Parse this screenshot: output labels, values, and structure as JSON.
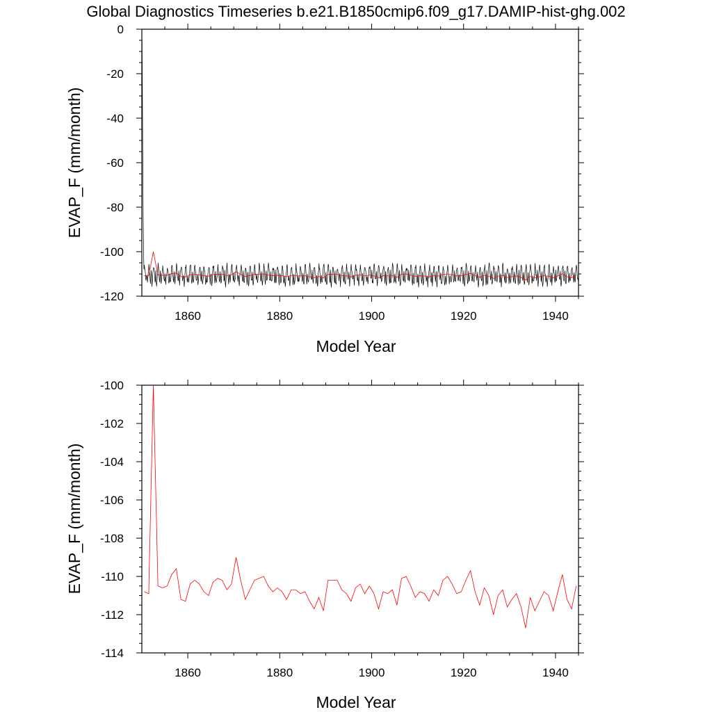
{
  "title": "Global Diagnostics Timeseries b.e21.B1850cmip6.f09_g17.DAMIP-hist-ghg.002",
  "chart_data": [
    {
      "type": "line",
      "xlabel": "Model Year",
      "ylabel": "EVAP_F (mm/month)",
      "xlim": [
        1850,
        1945
      ],
      "ylim": [
        -120,
        0
      ],
      "xticks": [
        1860,
        1880,
        1900,
        1920,
        1940
      ],
      "yticks": [
        0,
        -20,
        -40,
        -60,
        -80,
        -100,
        -120
      ],
      "grid": false,
      "series": [
        {
          "color": "#000000",
          "description_seed": "monthly",
          "monthly": {
            "start_year": 1850.0417,
            "start_values": [
              -5,
              -30,
              -60,
              -85,
              -100,
              -108
            ],
            "seasonal_cycle": [
              -109.5,
              -112.5,
              -114.5,
              -113,
              -110.5,
              -108,
              -106.5,
              -107,
              -109,
              -111.5,
              -113.5,
              -112.5
            ],
            "count": 1140
          }
        },
        {
          "color": "#ff0000",
          "x": [
            1850.5,
            1851.5,
            1852.5,
            1853.5,
            1854.5,
            1855.5,
            1856.5,
            1857.5,
            1858.5,
            1859.5,
            1860.5,
            1861.5,
            1862.5,
            1863.5,
            1864.5,
            1865.5,
            1866.5,
            1867.5,
            1868.5,
            1869.5,
            1870.5,
            1871.5,
            1872.5,
            1873.5,
            1874.5,
            1875.5,
            1876.5,
            1877.5,
            1878.5,
            1879.5,
            1880.5,
            1881.5,
            1882.5,
            1883.5,
            1884.5,
            1885.5,
            1886.5,
            1887.5,
            1888.5,
            1889.5,
            1890.5,
            1891.5,
            1892.5,
            1893.5,
            1894.5,
            1895.5,
            1896.5,
            1897.5,
            1898.5,
            1899.5,
            1900.5,
            1901.5,
            1902.5,
            1903.5,
            1904.5,
            1905.5,
            1906.5,
            1907.5,
            1908.5,
            1909.5,
            1910.5,
            1911.5,
            1912.5,
            1913.5,
            1914.5,
            1915.5,
            1916.5,
            1917.5,
            1918.5,
            1919.5,
            1920.5,
            1921.5,
            1922.5,
            1923.5,
            1924.5,
            1925.5,
            1926.5,
            1927.5,
            1928.5,
            1929.5,
            1930.5,
            1931.5,
            1932.5,
            1933.5,
            1934.5,
            1935.5,
            1936.5,
            1937.5,
            1938.5,
            1939.5,
            1940.5,
            1941.5,
            1942.5,
            1943.5,
            1944.5
          ],
          "values": [
            -110.8,
            -110.9,
            -100.0,
            -110.5,
            -110.6,
            -110.5,
            -109.9,
            -109.6,
            -111.2,
            -111.3,
            -110.4,
            -110.2,
            -110.4,
            -110.8,
            -111.0,
            -110.3,
            -110.1,
            -110.2,
            -110.7,
            -110.4,
            -109.0,
            -110.2,
            -111.2,
            -110.7,
            -110.2,
            -110.1,
            -110.0,
            -110.5,
            -110.8,
            -110.6,
            -110.8,
            -111.2,
            -110.7,
            -110.7,
            -110.9,
            -110.8,
            -111.3,
            -111.7,
            -111.1,
            -111.8,
            -110.2,
            -110.2,
            -110.2,
            -110.7,
            -110.9,
            -111.3,
            -110.6,
            -110.4,
            -110.9,
            -110.5,
            -110.9,
            -111.7,
            -110.8,
            -110.9,
            -110.7,
            -111.5,
            -110.1,
            -110.0,
            -110.5,
            -111.1,
            -110.8,
            -110.9,
            -111.3,
            -110.7,
            -111.0,
            -110.2,
            -110.0,
            -110.4,
            -110.9,
            -110.8,
            -110.2,
            -109.7,
            -110.8,
            -111.5,
            -110.6,
            -111.0,
            -112.0,
            -111.0,
            -110.7,
            -111.6,
            -111.2,
            -110.9,
            -111.6,
            -112.7,
            -111.1,
            -111.8,
            -111.3,
            -110.8,
            -111.0,
            -111.8,
            -110.8,
            -109.9,
            -111.2,
            -111.7,
            -110.5
          ]
        }
      ]
    },
    {
      "type": "line",
      "xlabel": "Model Year",
      "ylabel": "EVAP_F (mm/month)",
      "xlim": [
        1850,
        1945
      ],
      "ylim": [
        -114,
        -100
      ],
      "xticks": [
        1860,
        1880,
        1900,
        1920,
        1940
      ],
      "yticks": [
        -100,
        -102,
        -104,
        -106,
        -108,
        -110,
        -112,
        -114
      ],
      "grid": false,
      "series": [
        {
          "color": "#ff0000",
          "x_ref": "same_as_top_red",
          "values_ref": "same_as_top_red"
        }
      ]
    }
  ]
}
